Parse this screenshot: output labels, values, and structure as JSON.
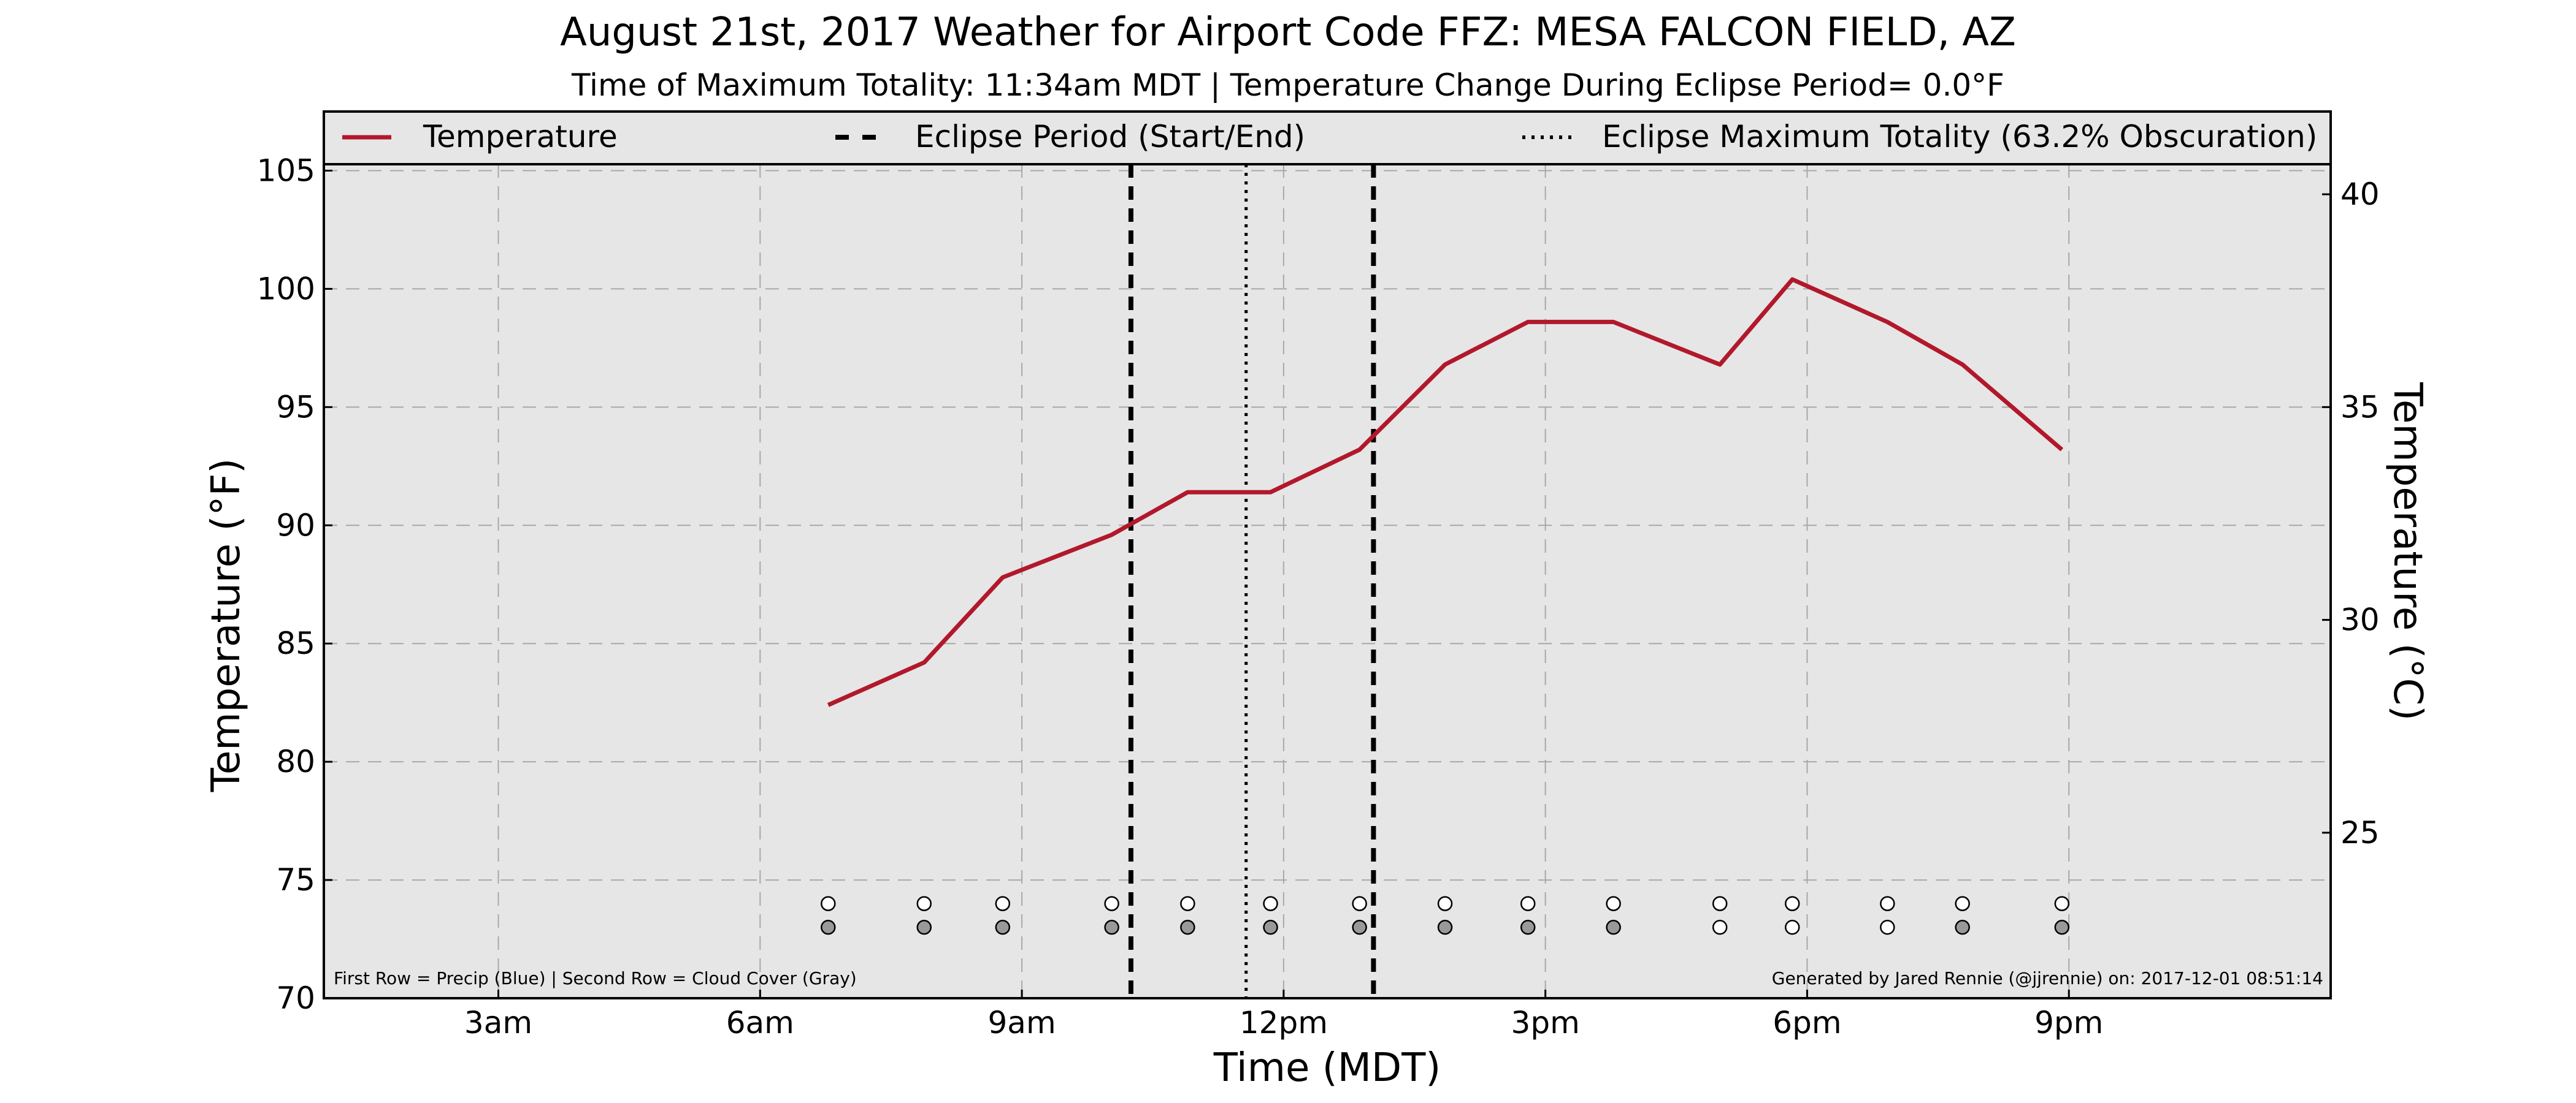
{
  "chart_data": {
    "type": "line",
    "title": "August 21st, 2017 Weather for Airport Code FFZ: MESA FALCON FIELD, AZ",
    "subtitle": "Time of Maximum Totality: 11:34am MDT | Temperature Change During Eclipse Period= 0.0°F",
    "xlabel": "Time (MDT)",
    "ylabel": "Temperature (°F)",
    "ylabel_right": "Temperature (°C)",
    "xlim_hours": [
      1,
      24
    ],
    "ylim": [
      70,
      107.5
    ],
    "yticks": [
      70,
      75,
      80,
      85,
      90,
      95,
      100,
      105
    ],
    "ytick_labels": [
      "70",
      "75",
      "80",
      "85",
      "90",
      "95",
      "100",
      "105"
    ],
    "yticks_right_c": [
      25,
      30,
      35,
      40
    ],
    "ytick_right_labels": [
      "25",
      "30",
      "35",
      "40"
    ],
    "xticks_hours": [
      3,
      6,
      9,
      12,
      15,
      18,
      21
    ],
    "xtick_labels": [
      "3am",
      "6am",
      "9am",
      "12pm",
      "3pm",
      "6pm",
      "9pm"
    ],
    "grid": true,
    "legend_position": "top",
    "series": [
      {
        "name": "Temperature",
        "color": "#b2182b",
        "x_hours": [
          6.78,
          7.88,
          8.78,
          10.03,
          10.9,
          11.85,
          12.87,
          13.85,
          14.8,
          15.78,
          17.0,
          17.83,
          18.92,
          19.78,
          20.92
        ],
        "values": [
          82.4,
          84.2,
          87.8,
          89.6,
          91.4,
          91.4,
          93.2,
          96.8,
          98.6,
          98.6,
          96.8,
          100.4,
          98.6,
          96.8,
          93.2
        ]
      }
    ],
    "eclipse": {
      "start_hour": 10.25,
      "end_hour": 13.03,
      "max_hour": 11.57,
      "legend_start_end": "Eclipse Period (Start/End)",
      "legend_max": "Eclipse Maximum Totality (63.2% Obscuration)"
    },
    "markers": {
      "row1_y": 74.0,
      "row2_y": 73.0,
      "row1_colors": [
        "#ffffff",
        "#ffffff",
        "#ffffff",
        "#ffffff",
        "#ffffff",
        "#ffffff",
        "#ffffff",
        "#ffffff",
        "#ffffff",
        "#ffffff",
        "#ffffff",
        "#ffffff",
        "#ffffff",
        "#ffffff",
        "#ffffff"
      ],
      "row2_colors": [
        "#999999",
        "#999999",
        "#999999",
        "#999999",
        "#999999",
        "#999999",
        "#999999",
        "#999999",
        "#999999",
        "#999999",
        "#ffffff",
        "#ffffff",
        "#ffffff",
        "#999999",
        "#999999"
      ]
    },
    "footnote_left": "First Row = Precip (Blue) | Second Row = Cloud Cover (Gray)",
    "footnote_right": "Generated by Jared Rennie (@jjrennie) on: 2017-12-01 08:51:14",
    "colors": {
      "plot_background": "#e6e6e6",
      "grid": "#a8a8a8",
      "temperature": "#b2182b"
    }
  }
}
